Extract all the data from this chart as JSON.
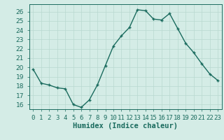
{
  "x": [
    0,
    1,
    2,
    3,
    4,
    5,
    6,
    7,
    8,
    9,
    10,
    11,
    12,
    13,
    14,
    15,
    16,
    17,
    18,
    19,
    20,
    21,
    22,
    23
  ],
  "y": [
    19.8,
    18.3,
    18.1,
    17.8,
    17.7,
    16.0,
    15.7,
    16.5,
    18.1,
    20.2,
    22.3,
    23.4,
    24.3,
    26.2,
    26.1,
    25.2,
    25.1,
    25.8,
    24.2,
    22.6,
    21.6,
    20.4,
    19.3,
    18.6
  ],
  "line_color": "#1a6b5e",
  "bg_color": "#d4ece6",
  "grid_color": "#b8d8d0",
  "xlabel": "Humidex (Indice chaleur)",
  "ylim": [
    15.5,
    26.8
  ],
  "xlim": [
    -0.5,
    23.5
  ],
  "yticks": [
    16,
    17,
    18,
    19,
    20,
    21,
    22,
    23,
    24,
    25,
    26
  ],
  "xticks": [
    0,
    1,
    2,
    3,
    4,
    5,
    6,
    7,
    8,
    9,
    10,
    11,
    12,
    13,
    14,
    15,
    16,
    17,
    18,
    19,
    20,
    21,
    22,
    23
  ],
  "xtick_labels": [
    "0",
    "1",
    "2",
    "3",
    "4",
    "5",
    "6",
    "7",
    "8",
    "9",
    "10",
    "11",
    "12",
    "13",
    "14",
    "15",
    "16",
    "17",
    "18",
    "19",
    "20",
    "21",
    "22",
    "23"
  ],
  "marker": "+",
  "marker_size": 3.5,
  "line_width": 1.0,
  "tick_fontsize": 6.5,
  "xlabel_fontsize": 7.5
}
